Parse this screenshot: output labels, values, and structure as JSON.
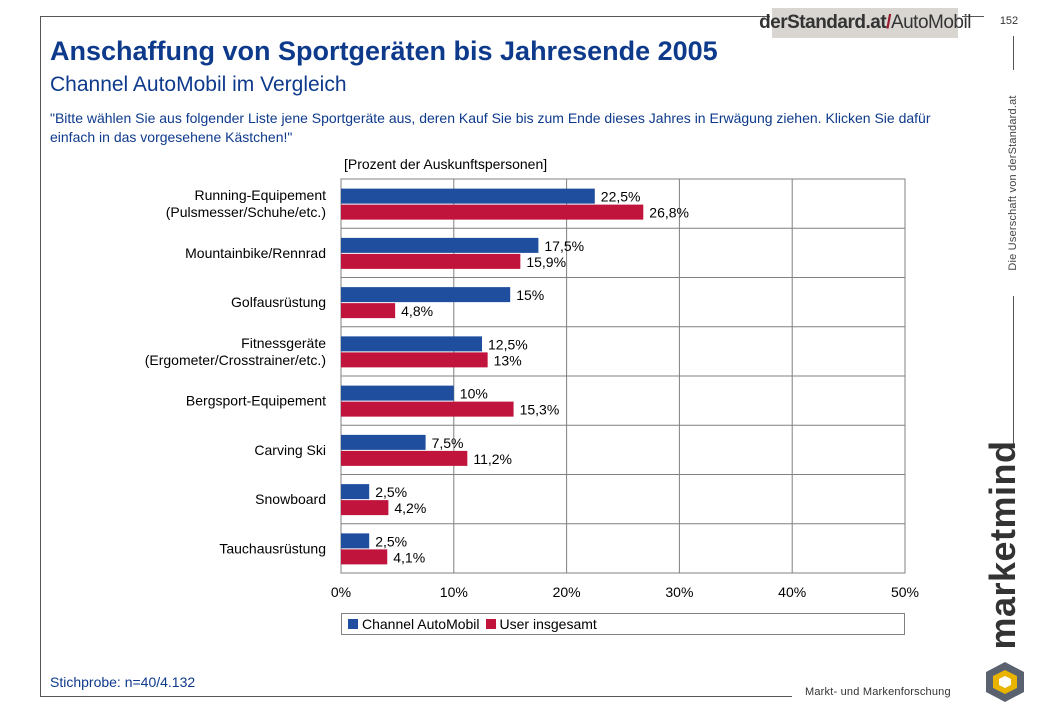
{
  "header": {
    "title": "Anschaffung von Sportgeräten bis Jahresende 2005",
    "subtitle": "Channel AutoMobil im Vergleich",
    "question": "\"Bitte wählen Sie aus folgender Liste jene Sportgeräte aus, deren Kauf Sie bis zum Ende dieses Jahres in Erwägung ziehen. Klicken Sie dafür einfach in das vorgesehene Kästchen!\"",
    "page_number": "152",
    "logo_bold": "derStandard.at",
    "logo_slash": "/",
    "logo_rest": "AutoMobil",
    "owner_note": "Die Userschaft von derStandard.at"
  },
  "brand": {
    "name": "marketmind",
    "tagline": "Markt- und Markenforschung"
  },
  "footer": {
    "sample": "Stichprobe: n=40/4.132"
  },
  "colors": {
    "series1": "#1f4e9e",
    "series2": "#c0143c",
    "title": "#0e3a8c"
  },
  "chart_data": {
    "type": "bar",
    "orientation": "horizontal",
    "unit_label": "[Prozent der Auskunftspersonen]",
    "categories": [
      [
        "Running-Equipement",
        "(Pulsmesser/Schuhe/etc.)"
      ],
      [
        "Mountainbike/Rennrad"
      ],
      [
        "Golfausrüstung"
      ],
      [
        "Fitnessgeräte",
        "(Ergometer/Crosstrainer/etc.)"
      ],
      [
        "Bergsport-Equipement"
      ],
      [
        "Carving Ski"
      ],
      [
        "Snowboard"
      ],
      [
        "Tauchausrüstung"
      ]
    ],
    "series": [
      {
        "name": "Channel AutoMobil",
        "values": [
          22.5,
          17.5,
          15,
          12.5,
          10,
          7.5,
          2.5,
          2.5
        ],
        "labels": [
          "22,5%",
          "17,5%",
          "15%",
          "12,5%",
          "10%",
          "7,5%",
          "2,5%",
          "2,5%"
        ]
      },
      {
        "name": "User insgesamt",
        "values": [
          26.8,
          15.9,
          4.8,
          13,
          15.3,
          11.2,
          4.2,
          4.1
        ],
        "labels": [
          "26,8%",
          "15,9%",
          "4,8%",
          "13%",
          "15,3%",
          "11,2%",
          "4,2%",
          "4,1%"
        ]
      }
    ],
    "xlim": [
      0,
      50
    ],
    "xticks": [
      0,
      10,
      20,
      30,
      40,
      50
    ],
    "xtick_labels": [
      "0%",
      "10%",
      "20%",
      "30%",
      "40%",
      "50%"
    ],
    "grid": true,
    "legend_position": "bottom"
  }
}
